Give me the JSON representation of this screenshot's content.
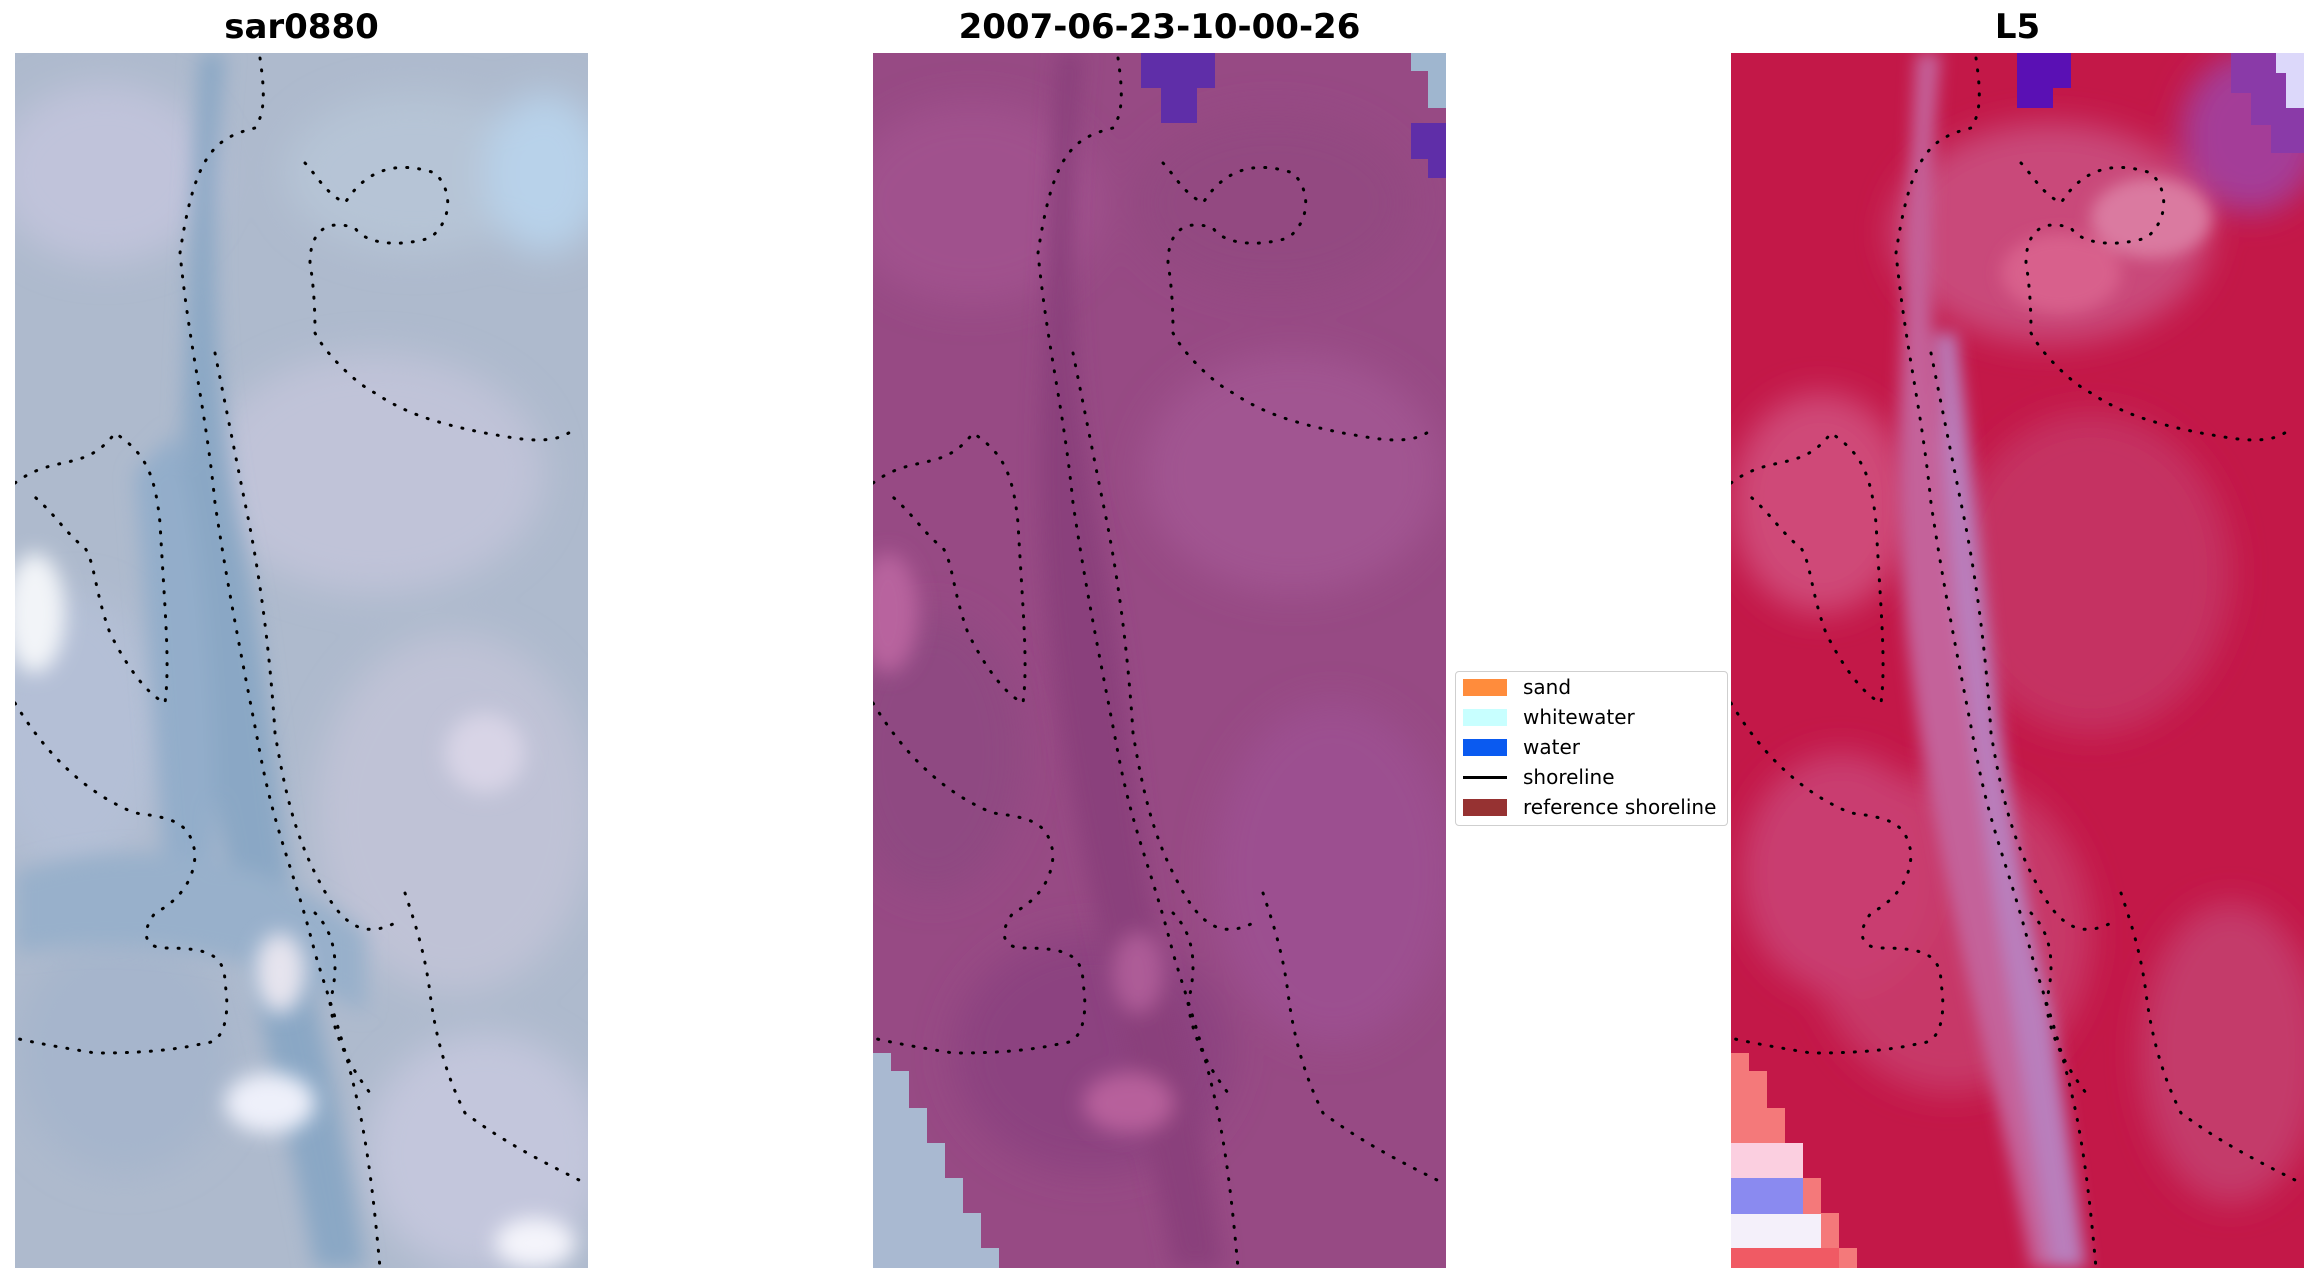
{
  "panels": [
    {
      "title": "sar0880",
      "image": "RGB satellite image"
    },
    {
      "title": "2007-06-23-10-00-26",
      "image": "classified image"
    },
    {
      "title": "L5",
      "image": "MNDWI image"
    }
  ],
  "legend": {
    "items": [
      {
        "label": "sand",
        "kind": "patch",
        "color": "#ff8c3c"
      },
      {
        "label": "whitewater",
        "kind": "patch",
        "color": "#c8ffff"
      },
      {
        "label": "water",
        "kind": "patch",
        "color": "#0a5af0"
      },
      {
        "label": "shoreline",
        "kind": "line",
        "color": "#000000"
      },
      {
        "label": "reference shoreline",
        "kind": "patch",
        "color": "#963232"
      }
    ]
  },
  "colors": {
    "rgb_base": "#a9b7cf",
    "rgb_channel": "#8fa9c8",
    "classified_base": "#9a4b86",
    "classified_water": "#5a2aa4",
    "mndwi_base": "#c4144a",
    "mndwi_channel": "#b77ab8",
    "shoreline_dots": "#000000"
  }
}
